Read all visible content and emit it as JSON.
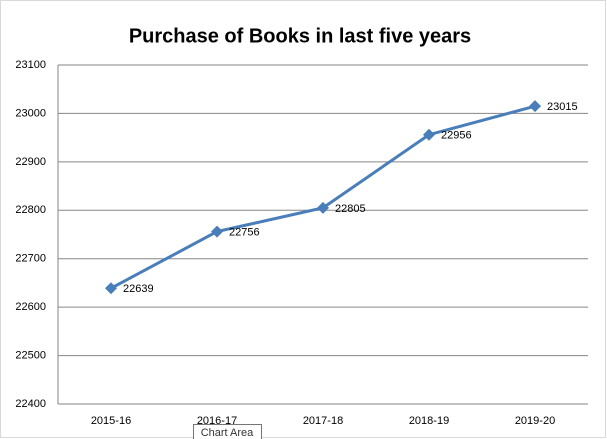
{
  "chart_data": {
    "type": "line",
    "title": "Purchase of Books in last five years",
    "categories": [
      "2015-16",
      "2016-17",
      "2017-18",
      "2018-19",
      "2019-20"
    ],
    "series": [
      {
        "name": "Purchase of Books",
        "color": "#4a7ebb",
        "values": [
          22639,
          22756,
          22805,
          22956,
          23015
        ]
      }
    ],
    "ylim": [
      22400,
      23100
    ],
    "yticks": [
      22400,
      22500,
      22600,
      22700,
      22800,
      22900,
      23000,
      23100
    ],
    "grid": true,
    "legend": false,
    "data_labels": true
  },
  "tooltip": "Chart Area"
}
